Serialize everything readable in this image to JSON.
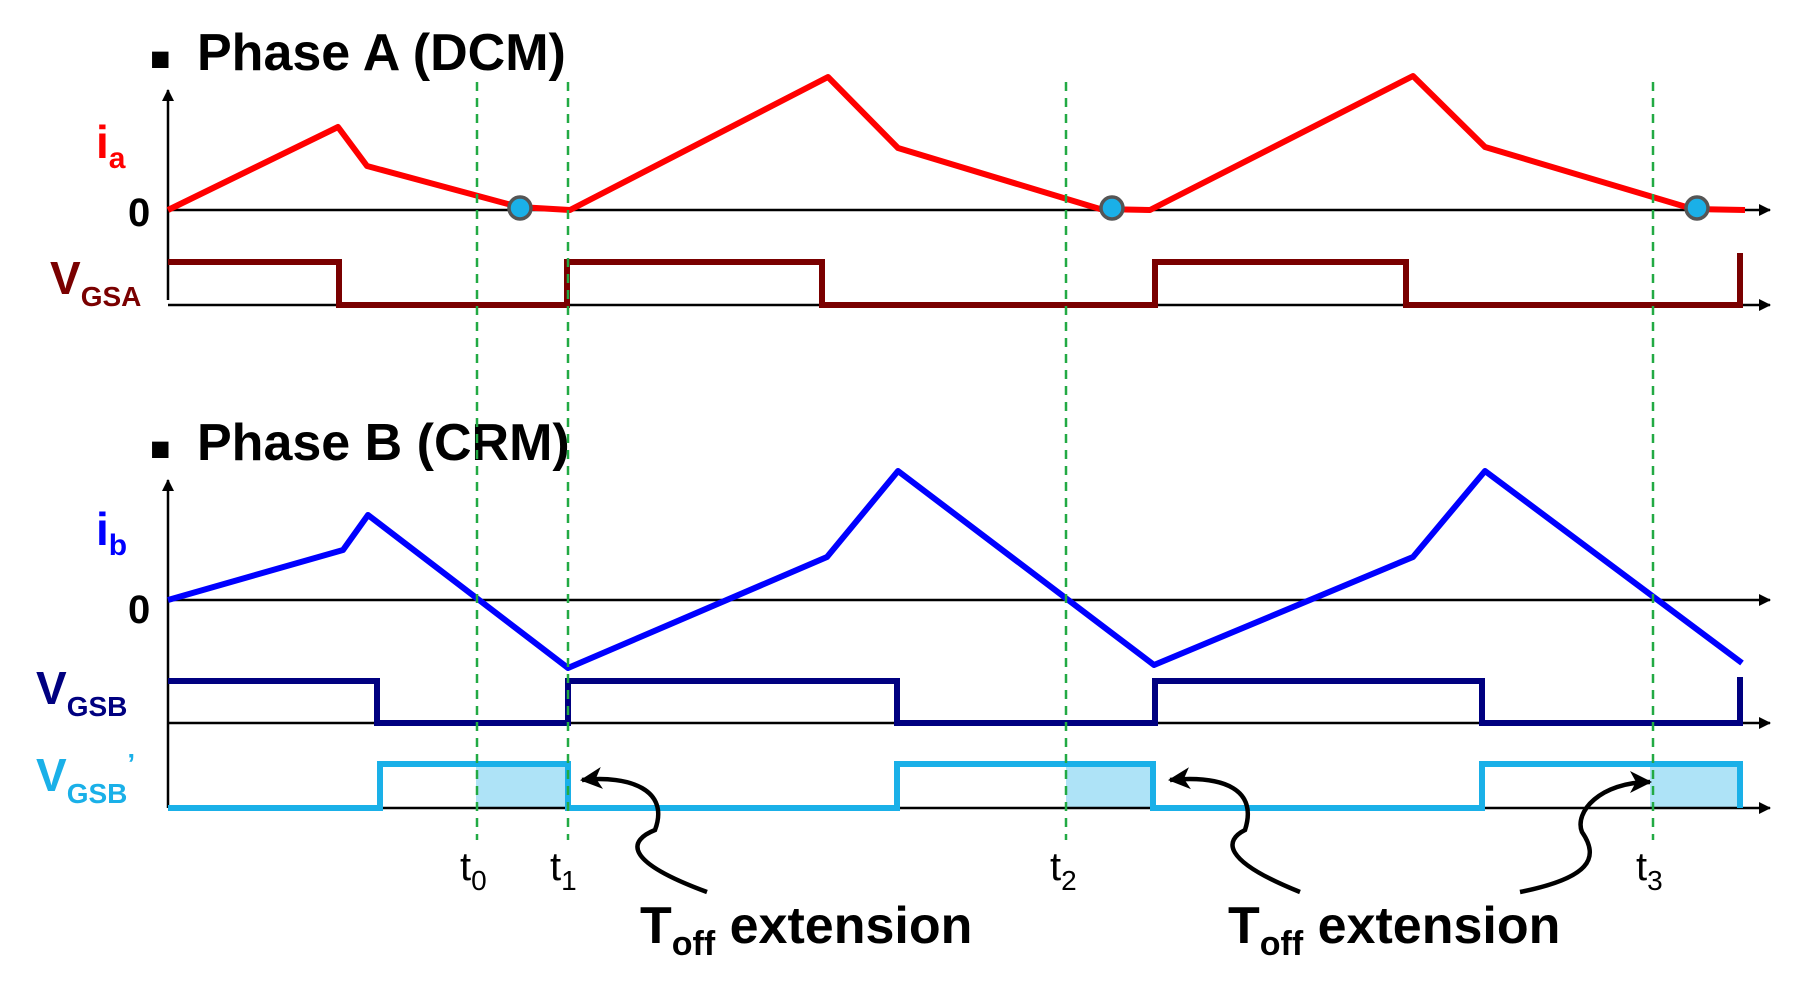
{
  "phase_a": {
    "title": "Phase A (DCM)",
    "current_label": "i",
    "current_sub": "a",
    "zero_label": "0",
    "gate_label": "V",
    "gate_sub": "GSA"
  },
  "phase_b": {
    "title": "Phase B (CRM)",
    "current_label": "i",
    "current_sub": "b",
    "zero_label": "0",
    "gate_label": "V",
    "gate_sub": "GSB",
    "gate2_label": "V",
    "gate2_sub": "GSB",
    "gate2_prime": "’"
  },
  "bullet": "■",
  "time_markers": [
    {
      "main": "t",
      "sub": "0"
    },
    {
      "main": "t",
      "sub": "1"
    },
    {
      "main": "t",
      "sub": "2"
    },
    {
      "main": "t",
      "sub": "3"
    }
  ],
  "annotations": [
    {
      "main": "T",
      "sub": "off",
      "rest": " extension"
    },
    {
      "main": "T",
      "sub": "off",
      "rest": " extension"
    }
  ],
  "colors": {
    "ia": "#ff0000",
    "vgsa": "#7a0000",
    "ib": "#0000ff",
    "vgsb": "#000080",
    "vgsb_prime": "#1ab0e8",
    "shade": "#aee3f7",
    "marker_line": "#22aa44",
    "zero_dot": "#1ab0e8"
  }
}
